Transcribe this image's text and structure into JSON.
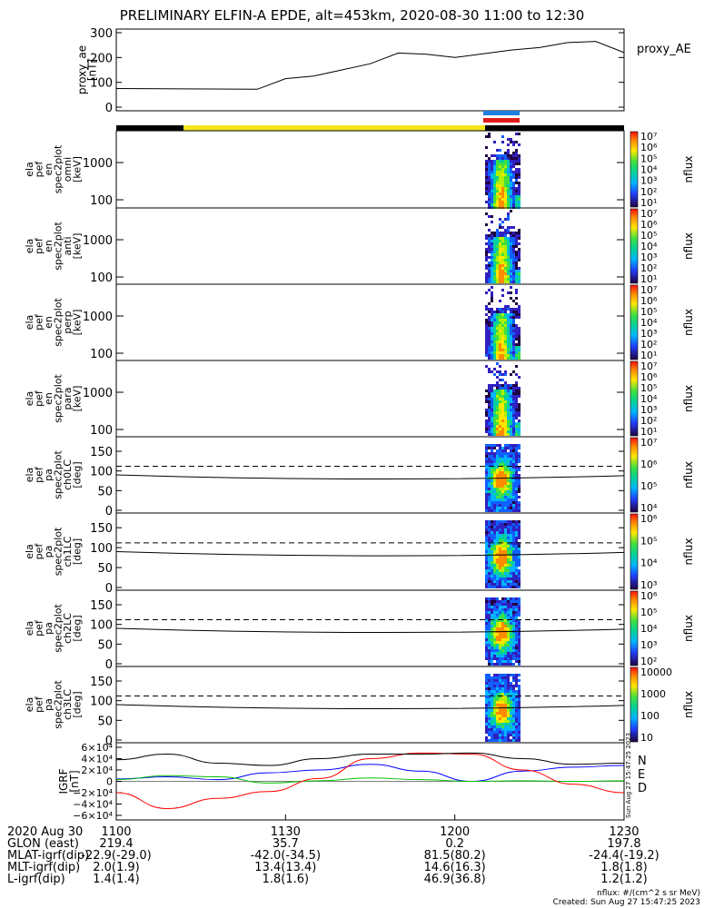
{
  "title": "PRELIMINARY ELFIN-A EPDE, alt=453km, 2020-08-30 11:00 to 12:30",
  "colors": {
    "orbit_bar_dark": "#000000",
    "orbit_bar_sunlit": "#f5e51e",
    "marker_blue": "#1f7fe0",
    "marker_red": "#e01c1c",
    "N": "#0000ff",
    "E": "#00c000",
    "D": "#ff0000"
  },
  "panels": [
    {
      "id": "proxy_ae",
      "ylabel": [
        "proxy_ae",
        "[nT]"
      ],
      "side_label": "proxy_AE",
      "yticks": [
        "300",
        "200",
        "100",
        "0"
      ],
      "ylim": [
        0,
        300
      ]
    },
    {
      "id": "omni",
      "ylabel": [
        "ela",
        "pef",
        "en",
        "spec2plot",
        "omni",
        "[keV]"
      ],
      "yticks": [
        "1000",
        "100"
      ],
      "cbar_label": "nflux",
      "cbar_ticks": [
        "10⁷",
        "10⁶",
        "10⁵",
        "10⁴",
        "10³",
        "10²",
        "10¹"
      ]
    },
    {
      "id": "anti",
      "ylabel": [
        "ela",
        "pef",
        "en",
        "spec2plot",
        "anti",
        "[keV]"
      ],
      "yticks": [
        "1000",
        "100"
      ],
      "cbar_label": "nflux",
      "cbar_ticks": [
        "10⁷",
        "10⁶",
        "10⁵",
        "10⁴",
        "10³",
        "10²",
        "10¹"
      ]
    },
    {
      "id": "perp",
      "ylabel": [
        "ela",
        "pef",
        "en",
        "spec2plot",
        "perp",
        "[keV]"
      ],
      "yticks": [
        "1000",
        "100"
      ],
      "cbar_label": "nflux",
      "cbar_ticks": [
        "10⁷",
        "10⁶",
        "10⁵",
        "10⁴",
        "10³",
        "10²",
        "10¹"
      ]
    },
    {
      "id": "para",
      "ylabel": [
        "ela",
        "pef",
        "en",
        "spec2plot",
        "para",
        "[keV]"
      ],
      "yticks": [
        "1000",
        "100"
      ],
      "cbar_label": "nflux",
      "cbar_ticks": [
        "10⁷",
        "10⁶",
        "10⁵",
        "10⁴",
        "10³",
        "10²",
        "10¹"
      ]
    },
    {
      "id": "ch0LC",
      "ylabel": [
        "ela",
        "pef",
        "pa",
        "spec2plot",
        "ch0LC",
        "[deg]"
      ],
      "yticks": [
        "150",
        "100",
        "50",
        "0"
      ],
      "cbar_label": "nflux",
      "cbar_ticks": [
        "10⁷",
        "10⁶",
        "10⁵",
        "10⁴"
      ]
    },
    {
      "id": "ch1LC",
      "ylabel": [
        "ela",
        "pef",
        "pa",
        "spec2plot",
        "ch1LC",
        "[deg]"
      ],
      "yticks": [
        "150",
        "100",
        "50",
        "0"
      ],
      "cbar_label": "nflux",
      "cbar_ticks": [
        "10⁶",
        "10⁵",
        "10⁴",
        "10³"
      ]
    },
    {
      "id": "ch2LC",
      "ylabel": [
        "ela",
        "pef",
        "pa",
        "spec2plot",
        "ch2LC",
        "[deg]"
      ],
      "yticks": [
        "150",
        "100",
        "50",
        "0"
      ],
      "cbar_label": "nflux",
      "cbar_ticks": [
        "10⁶",
        "10⁵",
        "10⁴",
        "10³",
        "10²"
      ]
    },
    {
      "id": "ch3LC",
      "ylabel": [
        "ela",
        "pef",
        "pa",
        "spec2plot",
        "ch3LC",
        "[deg]"
      ],
      "yticks": [
        "150",
        "100",
        "50",
        "0"
      ],
      "cbar_label": "nflux",
      "cbar_ticks": [
        "10000",
        "1000",
        "100",
        "10"
      ]
    },
    {
      "id": "igrf",
      "ylabel": [
        "IGRF",
        "[nT]"
      ],
      "yticks": [
        "6×10⁴",
        "4×10⁴",
        "2×10⁴",
        "0",
        "−2×10⁴",
        "−4×10⁴",
        "−6×10⁴"
      ],
      "legend": [
        "N",
        "E",
        "D"
      ],
      "side_text": "Sun Aug 27 15:47:25 2023"
    }
  ],
  "chart_data": {
    "type": "line",
    "title": "PRELIMINARY ELFIN-A EPDE, alt=453km, 2020-08-30 11:00 to 12:30",
    "proxy_ae": {
      "x_minutes": [
        0,
        25,
        30,
        35,
        40,
        45,
        50,
        55,
        60,
        65,
        70,
        75,
        80,
        85,
        90
      ],
      "values": [
        75,
        72,
        115,
        125,
        150,
        175,
        218,
        213,
        200,
        215,
        230,
        240,
        260,
        265,
        220
      ],
      "ylim": [
        0,
        300
      ]
    },
    "igrf": {
      "series": [
        {
          "name": "N",
          "values": [
            4000,
            8000,
            3000,
            15000,
            20000,
            30000,
            18000,
            0,
            18000,
            25000,
            28000
          ]
        },
        {
          "name": "E",
          "values": [
            3000,
            10000,
            8000,
            -3000,
            1000,
            6000,
            3000,
            0,
            1000,
            0,
            1000
          ]
        },
        {
          "name": "D",
          "values": [
            -20000,
            -48000,
            -30000,
            -18000,
            5000,
            40000,
            50000,
            48000,
            20000,
            -5000,
            -20000
          ]
        },
        {
          "name": "total",
          "values": [
            38000,
            48000,
            32000,
            28000,
            40000,
            48000,
            48000,
            50000,
            40000,
            30000,
            32000
          ]
        }
      ],
      "ylim": [
        -60000,
        60000
      ]
    },
    "x_axis": {
      "ticks": [
        "1100",
        "1130",
        "1200",
        "1230"
      ]
    }
  },
  "bottom_rows": [
    {
      "label": "2020 Aug 30",
      "values": [
        "1100",
        "1130",
        "1200",
        "1230"
      ]
    },
    {
      "label": "GLON (east)",
      "values": [
        "219.4",
        "35.7",
        "0.2",
        "197.8"
      ]
    },
    {
      "label": "MLAT-igrf(dip)",
      "values": [
        "-22.9(-29.0)",
        "-42.0(-34.5)",
        "81.5(80.2)",
        "-24.4(-19.2)"
      ]
    },
    {
      "label": "MLT-igrf(dip)",
      "values": [
        "2.0(1.9)",
        "13.4(13.4)",
        "14.6(16.3)",
        "1.8(1.8)"
      ]
    },
    {
      "label": "L-igrf(dip)",
      "values": [
        "1.4(1.4)",
        "1.8(1.6)",
        "46.9(36.8)",
        "1.2(1.2)"
      ]
    }
  ],
  "footer": {
    "units": "nflux: #/(cm^2 s sr MeV)",
    "created": "Created: Sun Aug 27 15:47:25 2023"
  }
}
